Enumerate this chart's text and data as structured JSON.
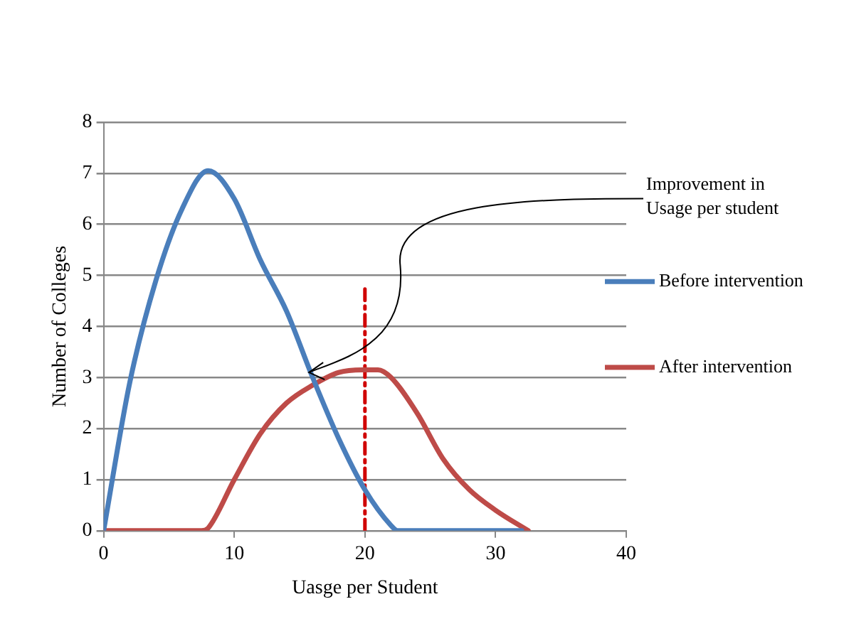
{
  "chart_data": {
    "type": "line",
    "xlabel": "Uasge per Student",
    "ylabel": "Number of Colleges",
    "xlim": [
      0,
      40
    ],
    "xticks": [
      0,
      10,
      20,
      30,
      40
    ],
    "ylim": [
      0,
      8
    ],
    "yticks": [
      0,
      1,
      2,
      3,
      4,
      5,
      6,
      7,
      8
    ],
    "grid": "y",
    "legend": "right",
    "marker": "none",
    "line_style": "solid",
    "series": [
      {
        "name": "Before intervention",
        "color": "#4a7ebb",
        "x": [
          0,
          2,
          4,
          6,
          8,
          10,
          12,
          14,
          16,
          18,
          20,
          22,
          22.5,
          27,
          32
        ],
        "values": [
          0,
          2.9,
          4.9,
          6.3,
          7.05,
          6.5,
          5.3,
          4.3,
          3,
          1.8,
          0.8,
          0.1,
          0,
          0,
          0
        ]
      },
      {
        "name": "After intervention",
        "color": "#be4b48",
        "x": [
          0,
          3,
          7.5,
          8,
          10,
          12,
          14,
          16,
          18,
          20,
          21,
          22,
          24,
          26,
          28,
          30,
          32.5
        ],
        "values": [
          0,
          0,
          0,
          0.05,
          1,
          1.9,
          2.5,
          2.85,
          3.1,
          3.15,
          3.15,
          3,
          2.3,
          1.4,
          0.8,
          0.4,
          0
        ]
      },
      {
        "color": "#d00000",
        "line_style": "dashed",
        "x": [
          20,
          20
        ],
        "values": [
          0,
          4.8
        ]
      }
    ],
    "annotations": [
      {
        "text": "Improvement in Usage per student",
        "x": 15.5,
        "y": 3.1
      }
    ]
  }
}
